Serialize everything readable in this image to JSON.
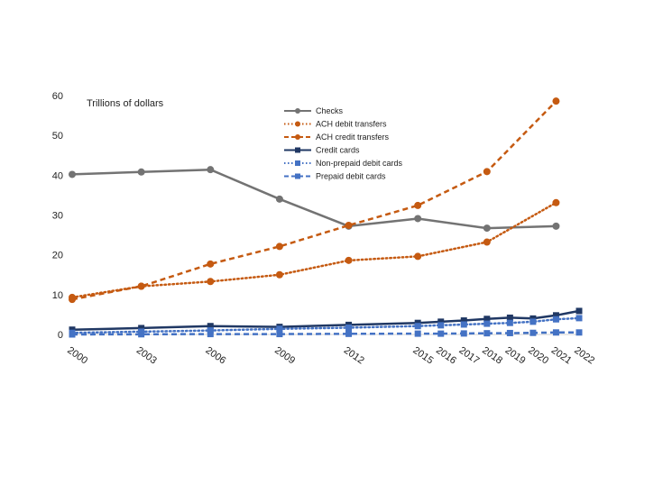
{
  "chart_data": {
    "type": "line",
    "unit_label": "Trillions of dollars",
    "title": "",
    "xlabel": "",
    "ylabel": "",
    "ylim": [
      0,
      60
    ],
    "yticks": [
      0,
      10,
      20,
      30,
      40,
      50,
      60
    ],
    "x": [
      "2000",
      "2003",
      "2006",
      "2009",
      "2012",
      "2015",
      "2016",
      "2017",
      "2018",
      "2019",
      "2020",
      "2021",
      "2022"
    ],
    "grid": false,
    "legend_position": "top-center",
    "series": [
      {
        "name": "Checks",
        "color": "#737373",
        "style": "solid",
        "marker": "circle",
        "points": [
          [
            "2000",
            40.2
          ],
          [
            "2003",
            40.8
          ],
          [
            "2006",
            41.4
          ],
          [
            "2009",
            34.0
          ],
          [
            "2012",
            27.2
          ],
          [
            "2015",
            29.1
          ],
          [
            "2018",
            26.7
          ],
          [
            "2021",
            27.2
          ]
        ]
      },
      {
        "name": "ACH debit transfers",
        "color": "#C55A11",
        "style": "dotted",
        "marker": "circle",
        "points": [
          [
            "2000",
            9.3
          ],
          [
            "2003",
            12.1
          ],
          [
            "2006",
            13.3
          ],
          [
            "2009",
            15.0
          ],
          [
            "2012",
            18.6
          ],
          [
            "2015",
            19.6
          ],
          [
            "2018",
            23.2
          ],
          [
            "2021",
            33.1
          ]
        ]
      },
      {
        "name": "ACH credit transfers",
        "color": "#C55A11",
        "style": "dashed",
        "marker": "circle",
        "points": [
          [
            "2000",
            8.8
          ],
          [
            "2003",
            12.1
          ],
          [
            "2006",
            17.7
          ],
          [
            "2009",
            22.1
          ],
          [
            "2012",
            27.4
          ],
          [
            "2015",
            32.4
          ],
          [
            "2018",
            40.9
          ],
          [
            "2021",
            58.6
          ]
        ]
      },
      {
        "name": "Credit cards",
        "color": "#203864",
        "style": "solid",
        "marker": "square",
        "points": [
          [
            "2000",
            1.2
          ],
          [
            "2003",
            1.6
          ],
          [
            "2006",
            2.1
          ],
          [
            "2009",
            1.9
          ],
          [
            "2012",
            2.4
          ],
          [
            "2015",
            2.9
          ],
          [
            "2016",
            3.2
          ],
          [
            "2017",
            3.5
          ],
          [
            "2018",
            3.9
          ],
          [
            "2019",
            4.2
          ],
          [
            "2020",
            4.0
          ],
          [
            "2021",
            4.8
          ],
          [
            "2022",
            5.9
          ]
        ]
      },
      {
        "name": "Non-prepaid debit cards",
        "color": "#4472C4",
        "style": "dotted",
        "marker": "square",
        "points": [
          [
            "2000",
            0.4
          ],
          [
            "2003",
            0.7
          ],
          [
            "2006",
            1.0
          ],
          [
            "2009",
            1.4
          ],
          [
            "2012",
            1.7
          ],
          [
            "2015",
            2.1
          ],
          [
            "2016",
            2.3
          ],
          [
            "2017",
            2.5
          ],
          [
            "2018",
            2.7
          ],
          [
            "2019",
            2.9
          ],
          [
            "2020",
            3.2
          ],
          [
            "2021",
            3.8
          ],
          [
            "2022",
            4.1
          ]
        ]
      },
      {
        "name": "Prepaid debit cards",
        "color": "#4472C4",
        "style": "dashed",
        "marker": "square",
        "points": [
          [
            "2000",
            0.0
          ],
          [
            "2003",
            0.05
          ],
          [
            "2006",
            0.1
          ],
          [
            "2009",
            0.1
          ],
          [
            "2012",
            0.15
          ],
          [
            "2015",
            0.2
          ],
          [
            "2016",
            0.2
          ],
          [
            "2017",
            0.25
          ],
          [
            "2018",
            0.3
          ],
          [
            "2019",
            0.35
          ],
          [
            "2020",
            0.4
          ],
          [
            "2021",
            0.5
          ],
          [
            "2022",
            0.5
          ]
        ]
      }
    ]
  }
}
